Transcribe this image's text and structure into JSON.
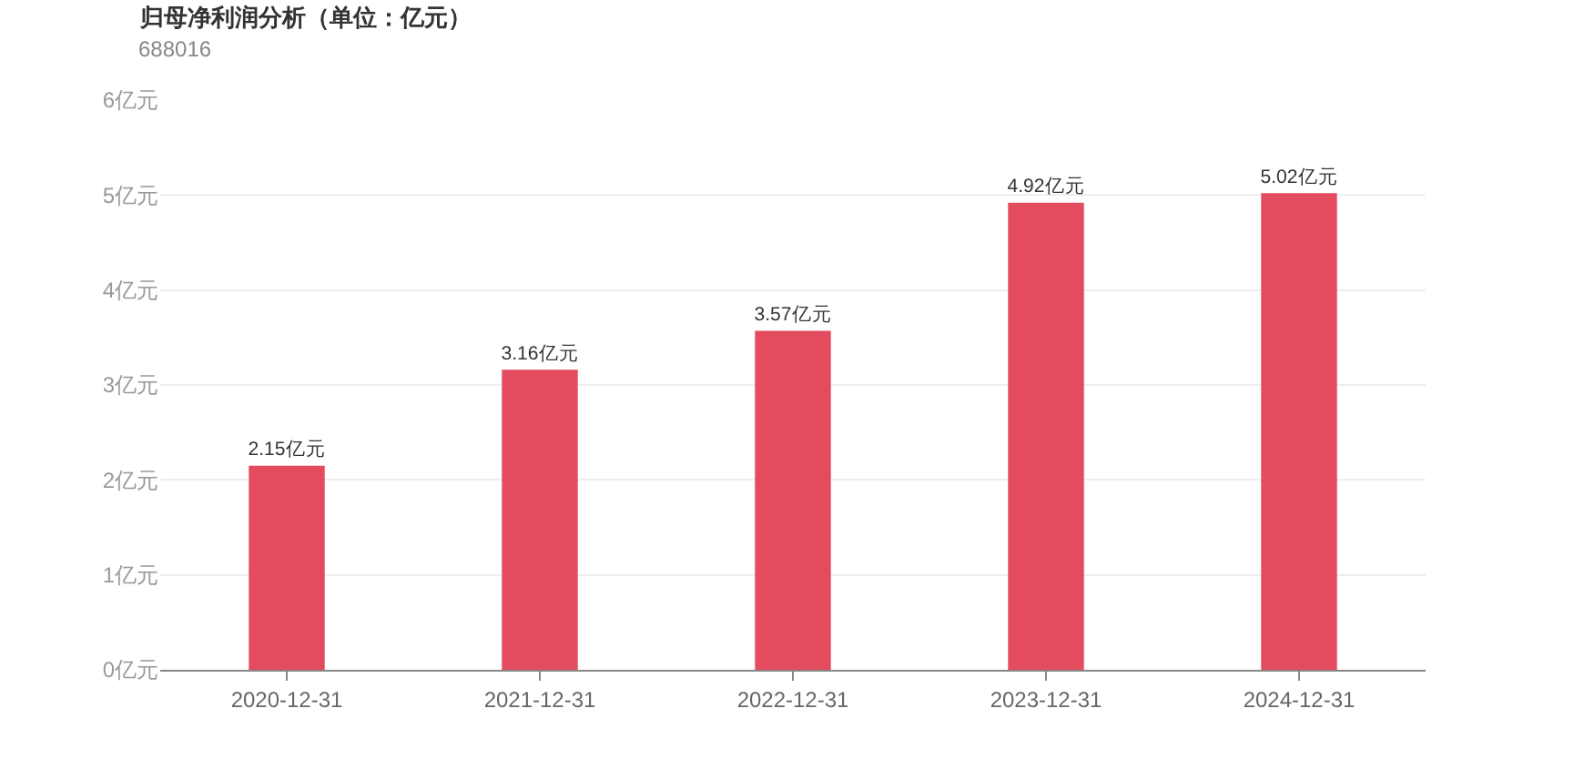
{
  "chart_data": {
    "type": "bar",
    "title": "归母净利润分析（单位：亿元）",
    "subtitle": "688016",
    "categories": [
      "2020-12-31",
      "2021-12-31",
      "2022-12-31",
      "2023-12-31",
      "2024-12-31"
    ],
    "values": [
      2.15,
      3.16,
      3.57,
      4.92,
      5.02
    ],
    "value_labels": [
      "2.15亿元",
      "3.16亿元",
      "3.57亿元",
      "4.92亿元",
      "5.02亿元"
    ],
    "color": "#e34b5f",
    "ylim": [
      0,
      6
    ],
    "yticks": [
      {
        "value": 0,
        "label": "0亿元"
      },
      {
        "value": 1,
        "label": "1亿元"
      },
      {
        "value": 2,
        "label": "2亿元"
      },
      {
        "value": 3,
        "label": "3亿元"
      },
      {
        "value": 4,
        "label": "4亿元"
      },
      {
        "value": 5,
        "label": "5亿元"
      },
      {
        "value": 6,
        "label": "6亿元"
      }
    ],
    "grid": "y",
    "legend": false
  }
}
